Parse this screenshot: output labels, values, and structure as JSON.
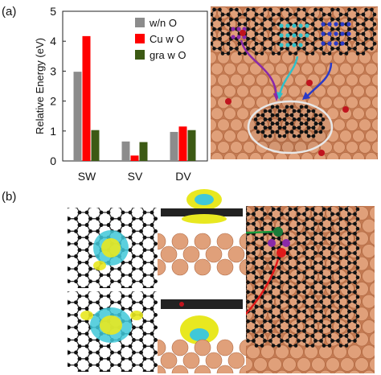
{
  "panels": {
    "a": {
      "label": "(a)"
    },
    "b": {
      "label": "(b)"
    }
  },
  "chart_data": {
    "type": "bar",
    "title": "",
    "xlabel": "",
    "ylabel": "Relative Energy   (eV)",
    "ylim": [
      0,
      5
    ],
    "yticks": [
      "0",
      "1",
      "2",
      "3",
      "4",
      "5"
    ],
    "categories": [
      "SW",
      "SV",
      "DV"
    ],
    "series": [
      {
        "name": "w/n O",
        "color": "#8c8c8c",
        "values": [
          2.98,
          0.65,
          0.97
        ]
      },
      {
        "name": "Cu w O",
        "color": "#ff0000",
        "values": [
          4.17,
          0.18,
          1.15
        ]
      },
      {
        "name": "gra w O",
        "color": "#3c5a14",
        "values": [
          1.03,
          0.63,
          1.03
        ]
      }
    ],
    "legend_position": "top-right",
    "grid": false
  },
  "colors": {
    "copper": "#e0a07a",
    "carbon": "#1a1a1a",
    "oxygen": "#c0141e",
    "isosurface_yellow": "#e8e820",
    "isosurface_cyan": "#40c8d8",
    "arrow_purple": "#8a2aa8",
    "arrow_cyan": "#30c0c8",
    "arrow_blue": "#2a3ac8",
    "arrow_green": "#1a9a3a",
    "arrow_red": "#e01a1a"
  }
}
